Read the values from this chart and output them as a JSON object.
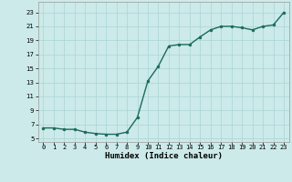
{
  "x": [
    0,
    1,
    2,
    3,
    4,
    5,
    6,
    7,
    8,
    9,
    10,
    11,
    12,
    13,
    14,
    15,
    16,
    17,
    18,
    19,
    20,
    21,
    22,
    23
  ],
  "y": [
    6.5,
    6.5,
    6.3,
    6.3,
    5.9,
    5.7,
    5.6,
    5.6,
    5.9,
    8.0,
    13.2,
    15.3,
    18.2,
    18.4,
    18.4,
    19.5,
    20.5,
    21.0,
    21.0,
    20.8,
    20.5,
    21.0,
    21.2,
    23.0
  ],
  "line_color": "#1a6b5a",
  "marker": "o",
  "marker_size": 2.0,
  "background_color": "#cceaea",
  "grid_color": "#aad4d4",
  "xlabel": "Humidex (Indice chaleur)",
  "xlim": [
    -0.5,
    23.5
  ],
  "ylim": [
    4.5,
    24.5
  ],
  "xtick_labels": [
    "0",
    "1",
    "2",
    "3",
    "4",
    "5",
    "6",
    "7",
    "8",
    "9",
    "10",
    "11",
    "12",
    "13",
    "14",
    "15",
    "16",
    "17",
    "18",
    "19",
    "20",
    "21",
    "22",
    "23"
  ],
  "yticks": [
    5,
    7,
    9,
    11,
    13,
    15,
    17,
    19,
    21,
    23
  ],
  "tick_fontsize": 5.0,
  "xlabel_fontsize": 6.5,
  "line_width": 1.0
}
